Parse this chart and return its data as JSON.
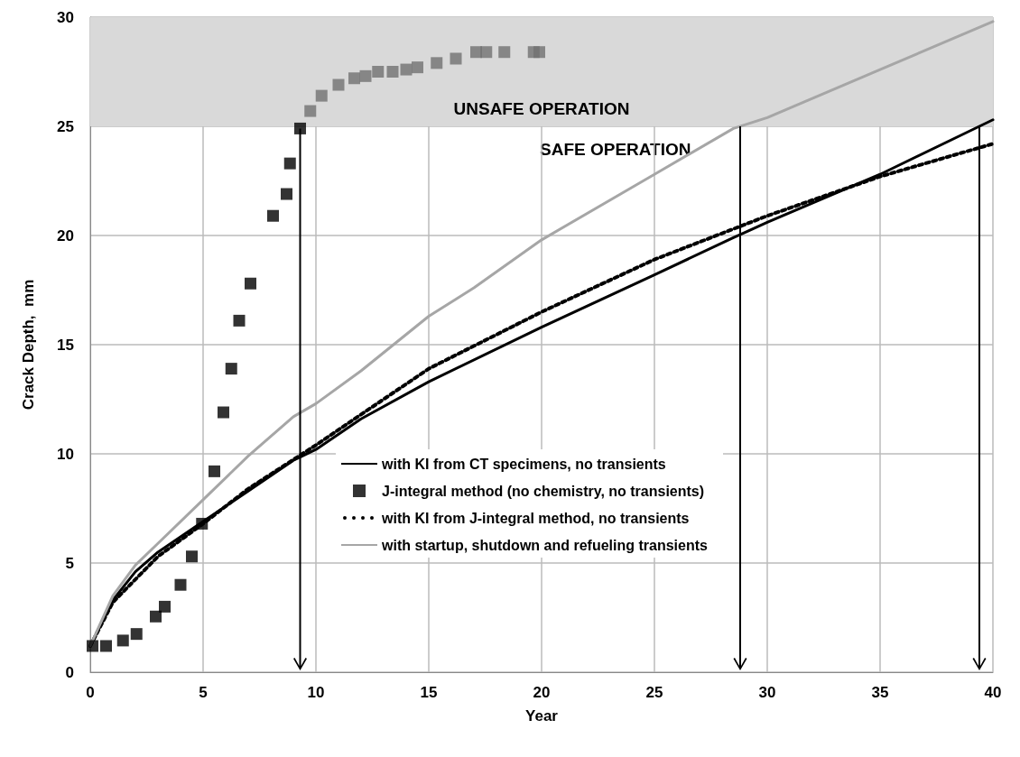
{
  "chart_data": {
    "type": "line",
    "xlabel": "Year",
    "ylabel": "Crack Depth,  mm",
    "xlim": [
      0,
      40
    ],
    "xticks": [
      0,
      5,
      10,
      15,
      20,
      25,
      30,
      35,
      40
    ],
    "ylim": [
      0,
      30
    ],
    "yticks": [
      0,
      5,
      10,
      15,
      20,
      25,
      30
    ],
    "grid": true,
    "legend": "bottom",
    "series": [
      {
        "name": "with KI from CT specimens, no transients",
        "color": "#000000",
        "line_style": "solid",
        "marker": "none",
        "x": [
          0,
          1,
          2,
          3,
          5,
          7,
          9,
          10,
          12,
          15,
          20,
          25,
          28.5,
          30,
          35,
          40
        ],
        "values": [
          1.2,
          3.3,
          4.6,
          5.5,
          6.9,
          8.3,
          9.7,
          10.2,
          11.6,
          13.3,
          15.8,
          18.2,
          19.9,
          20.6,
          22.8,
          25.3
        ]
      },
      {
        "name": "J-integral method (no chemistry, no transients)",
        "type": "scatter",
        "marker": "square",
        "color": "#000000",
        "colors": [
          "#000000",
          "#000000",
          "#000000",
          "#000000",
          "#000000",
          "#000000",
          "#000000",
          "#000000",
          "#000000",
          "#000000",
          "#000000",
          "#000000",
          "#000000",
          "#000000",
          "#000000",
          "#000000",
          "#000000",
          "#000000",
          "#707070",
          "#707070",
          "#707070",
          "#707070",
          "#707070",
          "#707070",
          "#707070",
          "#707070",
          "#707070",
          "#707070",
          "#707070",
          "#707070",
          "#707070",
          "#707070",
          "#707070",
          "#707070"
        ],
        "x": [
          0.1,
          0.7,
          1.45,
          2.05,
          2.9,
          3.3,
          4.0,
          4.5,
          4.95,
          5.5,
          5.9,
          6.25,
          6.6,
          7.1,
          8.1,
          8.7,
          8.85,
          9.3,
          9.75,
          10.25,
          11.0,
          11.7,
          12.2,
          12.75,
          13.4,
          14.0,
          14.5,
          15.35,
          16.2,
          17.1,
          17.55,
          18.35,
          19.65,
          19.9
        ],
        "values": [
          1.2,
          1.2,
          1.45,
          1.75,
          2.55,
          3.0,
          4.0,
          5.3,
          6.8,
          9.2,
          11.9,
          13.9,
          16.1,
          17.8,
          20.9,
          21.9,
          23.3,
          24.9,
          25.7,
          26.4,
          26.9,
          27.2,
          27.3,
          27.5,
          27.5,
          27.6,
          27.7,
          27.9,
          28.1,
          28.4,
          28.4,
          28.4,
          28.4,
          28.4
        ]
      },
      {
        "name": "with KI from J-integral method, no transients",
        "color": "#000000",
        "line_style": "dotted",
        "marker": "none",
        "x": [
          0,
          1,
          3,
          5,
          7,
          10,
          12,
          15,
          20,
          25,
          30,
          35,
          40
        ],
        "values": [
          1.2,
          3.2,
          5.3,
          6.8,
          8.4,
          10.4,
          11.8,
          13.9,
          16.5,
          18.9,
          20.9,
          22.7,
          24.2
        ]
      },
      {
        "name": "with startup, shutdown and refueling transients",
        "color": "#a6a6a6",
        "line_style": "solid",
        "marker": "none",
        "x": [
          0,
          1,
          2,
          3,
          5,
          7,
          9,
          10,
          12,
          15,
          17,
          20,
          25,
          28.5,
          30,
          35,
          40
        ],
        "values": [
          1.2,
          3.5,
          4.9,
          5.9,
          7.9,
          9.9,
          11.7,
          12.3,
          13.8,
          16.3,
          17.6,
          19.8,
          22.8,
          24.9,
          25.4,
          27.6,
          29.8
        ]
      }
    ],
    "bands": [
      {
        "axis": "y",
        "from": 25,
        "to": 30,
        "label": "UNSAFE OPERATION",
        "color": "#d9d9d9"
      }
    ],
    "annotations": [
      "SAFE OPERATION"
    ]
  }
}
